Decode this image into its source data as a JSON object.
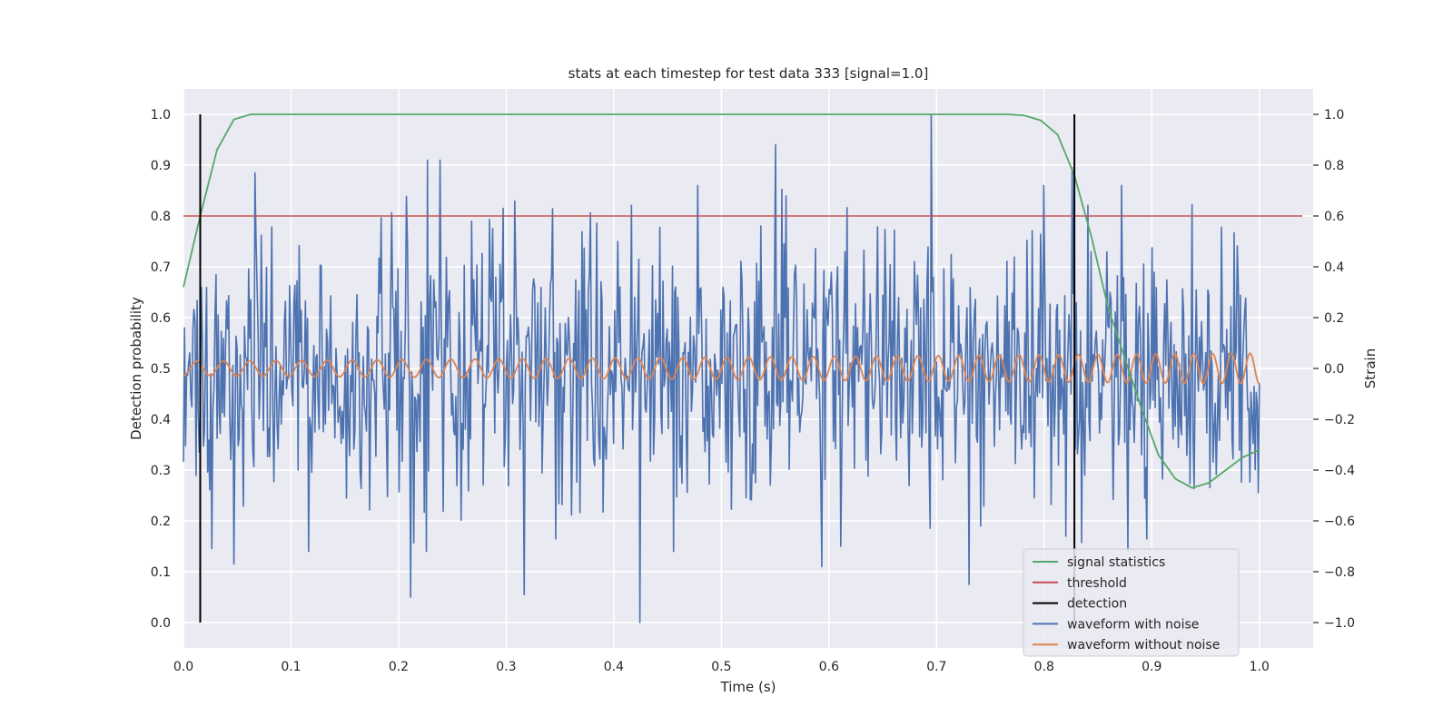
{
  "chart_data": {
    "type": "line",
    "title": "stats at each timestep for test data 333 [signal=1.0]",
    "xlabel": "Time (s)",
    "ylabel_left": "Detection probability",
    "ylabel_right": "Strain",
    "xlim": [
      0.0,
      1.05
    ],
    "ylim_left": [
      -0.05,
      1.05
    ],
    "ylim_right": [
      -1.1,
      1.1
    ],
    "x_ticks": [
      0.0,
      0.1,
      0.2,
      0.3,
      0.4,
      0.5,
      0.6,
      0.7,
      0.8,
      0.9,
      1.0
    ],
    "y_left_ticks": [
      0.0,
      0.1,
      0.2,
      0.3,
      0.4,
      0.5,
      0.6,
      0.7,
      0.8,
      0.9,
      1.0
    ],
    "y_right_ticks": [
      -1.0,
      -0.8,
      -0.6,
      -0.4,
      -0.2,
      0.0,
      0.2,
      0.4,
      0.6,
      0.8,
      1.0
    ],
    "x_tick_labels": [
      "0.0",
      "0.1",
      "0.2",
      "0.3",
      "0.4",
      "0.5",
      "0.6",
      "0.7",
      "0.8",
      "0.9",
      "1.0"
    ],
    "y_left_tick_labels": [
      "0.0",
      "0.1",
      "0.2",
      "0.3",
      "0.4",
      "0.5",
      "0.6",
      "0.7",
      "0.8",
      "0.9",
      "1.0"
    ],
    "y_right_tick_labels": [
      "−1.0",
      "−0.8",
      "−0.6",
      "−0.4",
      "−0.2",
      "0.0",
      "0.2",
      "0.4",
      "0.6",
      "0.8",
      "1.0"
    ],
    "grid": true,
    "legend_position": "lower-right",
    "series": [
      {
        "name": "signal statistics",
        "axis": "left",
        "color": "#55a868",
        "x": [
          0.0,
          0.0156,
          0.0312,
          0.0469,
          0.0625,
          0.0781,
          0.75,
          0.7656,
          0.7812,
          0.7969,
          0.8125,
          0.8281,
          0.8438,
          0.8594,
          0.875,
          0.8906,
          0.9062,
          0.9219,
          0.9375,
          0.9531,
          0.9688,
          0.9844,
          1.0
        ],
        "y": [
          0.66,
          0.8,
          0.93,
          0.99,
          1.0,
          1.0,
          1.0,
          1.0,
          0.998,
          0.988,
          0.96,
          0.88,
          0.76,
          0.62,
          0.52,
          0.42,
          0.33,
          0.283,
          0.265,
          0.275,
          0.3,
          0.325,
          0.34
        ]
      },
      {
        "name": "threshold",
        "axis": "left",
        "color": "#c44e52",
        "x": [
          0.0,
          1.04
        ],
        "y": [
          0.8,
          0.8
        ]
      },
      {
        "name": "detection",
        "axis": "left",
        "color": "#000000",
        "x": [
          0.0156,
          0.8281
        ],
        "y": [
          0.0,
          1.0
        ]
      },
      {
        "name": "waveform with noise",
        "axis": "right",
        "color": "#4c72b0",
        "x_range": [
          0.0,
          1.0
        ],
        "n_points": 1024,
        "noise_sd": 0.26,
        "peaks": [
          {
            "x": 0.0664,
            "y": 0.77
          },
          {
            "x": 0.2266,
            "y": 0.82
          },
          {
            "x": 0.2383,
            "y": 0.82
          },
          {
            "x": 0.5508,
            "y": 0.88
          },
          {
            "x": 0.6953,
            "y": 1.0
          },
          {
            "x": 0.8262,
            "y": 0.79
          },
          {
            "x": 0.0469,
            "y": -0.77
          },
          {
            "x": 0.2109,
            "y": -0.9
          },
          {
            "x": 0.3164,
            "y": -0.89
          },
          {
            "x": 0.4238,
            "y": -1.0
          },
          {
            "x": 0.5938,
            "y": -0.78
          },
          {
            "x": 0.7305,
            "y": -0.85
          }
        ]
      },
      {
        "name": "waveform without noise",
        "axis": "right",
        "color": "#dd8452",
        "x_range": [
          0.0,
          1.0
        ],
        "amplitude_start": 0.028,
        "amplitude_end": 0.06,
        "frequency_start_hz": 40,
        "frequency_end_hz": 58
      }
    ]
  }
}
